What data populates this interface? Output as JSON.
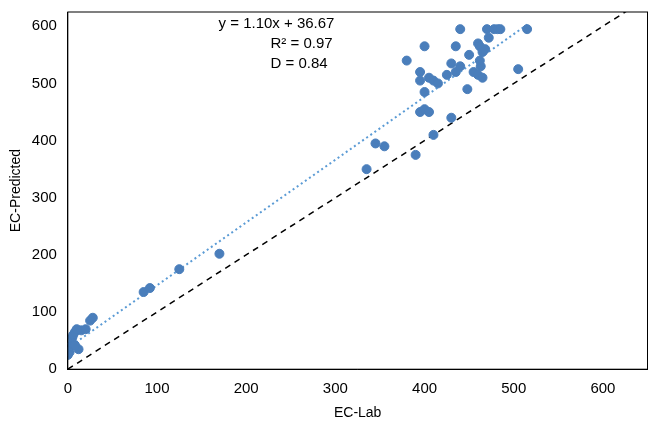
{
  "chart_data": {
    "type": "scatter",
    "x_label": "EC-Lab",
    "y_label": "EC-Predicted",
    "annotations": [
      "y = 1.10x + 36.67",
      "R² = 0.97",
      "D = 0.84"
    ],
    "x": [
      0,
      2,
      3,
      5,
      5,
      6,
      8,
      10,
      12,
      8,
      15,
      20,
      25,
      28,
      85,
      92,
      125,
      170,
      335,
      345,
      355,
      390,
      395,
      400,
      405,
      410,
      430,
      380,
      395,
      395,
      400,
      400,
      405,
      410,
      415,
      425,
      430,
      435,
      435,
      440,
      440,
      448,
      450,
      455,
      460,
      460,
      462,
      463,
      465,
      465,
      468,
      470,
      472,
      478,
      482,
      485,
      505,
      515,
      462
    ],
    "values": [
      25,
      30,
      40,
      45,
      55,
      60,
      65,
      70,
      35,
      42,
      68,
      70,
      85,
      90,
      135,
      142,
      175,
      202,
      350,
      395,
      390,
      375,
      450,
      455,
      450,
      410,
      440,
      540,
      505,
      520,
      565,
      485,
      510,
      505,
      500,
      515,
      535,
      520,
      565,
      595,
      530,
      490,
      550,
      520,
      515,
      570,
      565,
      530,
      510,
      555,
      560,
      595,
      580,
      595,
      595,
      595,
      525,
      595,
      540
    ],
    "color": "#4a7ebb",
    "marker": "circle",
    "lines": [
      {
        "x": [
          0,
          518
        ],
        "values": [
          37,
          606
        ],
        "color": "#5b9bd5",
        "line_style": "dotted"
      },
      {
        "x": [
          0,
          650
        ],
        "values": [
          0,
          650
        ],
        "color": "#000000",
        "line_style": "dashed"
      }
    ],
    "xlim": [
      0,
      650
    ],
    "ylim": [
      0,
      625
    ],
    "xticks": [
      0,
      100,
      200,
      300,
      400,
      500,
      600
    ],
    "yticks": [
      0,
      100,
      200,
      300,
      400,
      500,
      600
    ],
    "grid": false
  }
}
